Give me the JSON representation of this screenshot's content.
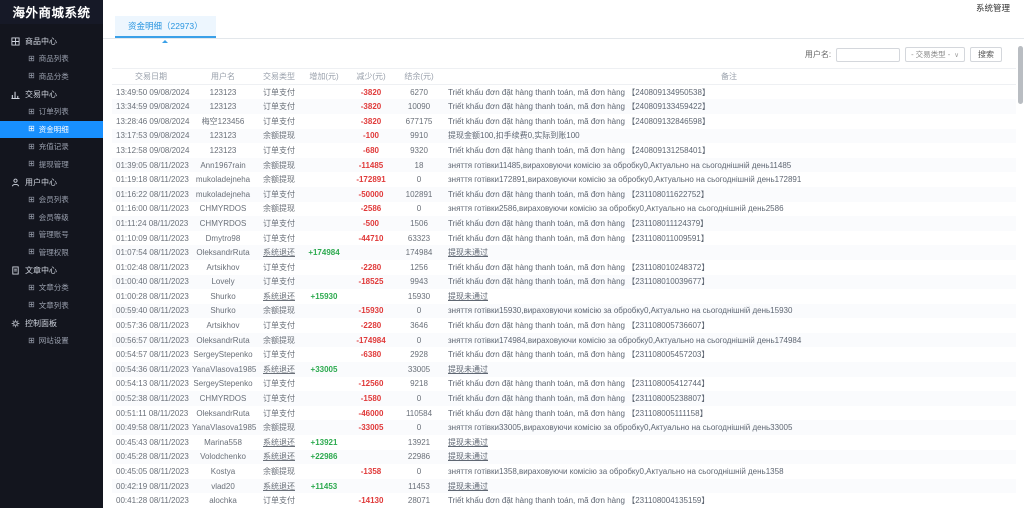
{
  "app": {
    "logo_title": "海外商城系统",
    "topbar_right": "系统管理"
  },
  "sidebar": {
    "sections": [
      {
        "key": "product-center",
        "label": "商品中心",
        "icon": "grid-icon",
        "items": [
          {
            "key": "product-list",
            "label": "商品列表",
            "active": false
          },
          {
            "key": "product-category",
            "label": "商品分类",
            "active": false
          }
        ]
      },
      {
        "key": "trade-center",
        "label": "交易中心",
        "icon": "chart-icon",
        "items": [
          {
            "key": "order-list",
            "label": "订单列表",
            "active": false
          },
          {
            "key": "fund-detail",
            "label": "资金明细",
            "active": true
          },
          {
            "key": "recharge-record",
            "label": "充值记录",
            "active": false
          },
          {
            "key": "withdraw-manage",
            "label": "提现管理",
            "active": false
          }
        ]
      },
      {
        "key": "user-center",
        "label": "用户中心",
        "icon": "user-icon",
        "items": [
          {
            "key": "member-list",
            "label": "会员列表",
            "active": false
          },
          {
            "key": "member-level",
            "label": "会员等级",
            "active": false
          },
          {
            "key": "admin-account",
            "label": "管理账号",
            "active": false
          },
          {
            "key": "admin-permission",
            "label": "管理权限",
            "active": false
          }
        ]
      },
      {
        "key": "article-center",
        "label": "文章中心",
        "icon": "doc-icon",
        "items": [
          {
            "key": "article-category",
            "label": "文章分类",
            "active": false
          },
          {
            "key": "article-list",
            "label": "文章列表",
            "active": false
          }
        ]
      },
      {
        "key": "control-panel",
        "label": "控制面板",
        "icon": "gear-icon",
        "items": [
          {
            "key": "site-setting",
            "label": "网站设置",
            "active": false
          }
        ]
      }
    ]
  },
  "tabs": {
    "active_tab": "资金明细（22973）"
  },
  "filter": {
    "username_label": "用户名:",
    "username_value": "",
    "type_select_label": "- 交易类型 -",
    "search_label": "搜索"
  },
  "table": {
    "headers": [
      "交易日期",
      "用户名",
      "交易类型",
      "增加(元)",
      "减少(元)",
      "结余(元)",
      "备注"
    ],
    "rows": [
      {
        "datetime": "13:49:50 09/08/2024",
        "user": "123123",
        "type": "订单支付",
        "increase": "",
        "decrease": "-3820",
        "balance": "6270",
        "remark": "Triết khấu đơn đặt hàng thanh toán, mã đơn hàng 【240809134950538】",
        "remark_link": false
      },
      {
        "datetime": "13:34:59 09/08/2024",
        "user": "123123",
        "type": "订单支付",
        "increase": "",
        "decrease": "-3820",
        "balance": "10090",
        "remark": "Triết khấu đơn đặt hàng thanh toán, mã đơn hàng 【240809133459422】",
        "remark_link": false
      },
      {
        "datetime": "13:28:46 09/08/2024",
        "user": "梅空123456",
        "type": "订单支付",
        "increase": "",
        "decrease": "-3820",
        "balance": "677175",
        "remark": "Triết khấu đơn đặt hàng thanh toán, mã đơn hàng 【240809132846598】",
        "remark_link": false
      },
      {
        "datetime": "13:17:53 09/08/2024",
        "user": "123123",
        "type": "余额提现",
        "increase": "",
        "decrease": "-100",
        "balance": "9910",
        "remark": "提现金额100,扣手续费0,实际到账100",
        "remark_link": false
      },
      {
        "datetime": "13:12:58 09/08/2024",
        "user": "123123",
        "type": "订单支付",
        "increase": "",
        "decrease": "-680",
        "balance": "9320",
        "remark": "Triết khấu đơn đặt hàng thanh toán, mã đơn hàng 【240809131258401】",
        "remark_link": false
      },
      {
        "datetime": "01:39:05 08/11/2023",
        "user": "Ann1967rain",
        "type": "余额提现",
        "increase": "",
        "decrease": "-11485",
        "balance": "18",
        "remark": "зняття готівки11485,вираховуючи комісію за обробку0,Актуально на сьогоднішній день11485",
        "remark_link": false
      },
      {
        "datetime": "01:19:18 08/11/2023",
        "user": "mukoladejneha",
        "type": "余额提现",
        "increase": "",
        "decrease": "-172891",
        "balance": "0",
        "remark": "зняття готівки172891,вираховуючи комісію за обробку0,Актуально на сьогоднішній день172891",
        "remark_link": false
      },
      {
        "datetime": "01:16:22 08/11/2023",
        "user": "mukoladejneha",
        "type": "订单支付",
        "increase": "",
        "decrease": "-50000",
        "balance": "102891",
        "remark": "Triết khấu đơn đặt hàng thanh toán, mã đơn hàng 【231108011622752】",
        "remark_link": false
      },
      {
        "datetime": "01:16:00 08/11/2023",
        "user": "CHMYRDOS",
        "type": "余额提现",
        "increase": "",
        "decrease": "-2586",
        "balance": "0",
        "remark": "зняття готівки2586,вираховуючи комісію за обробку0,Актуально на сьогоднішній день2586",
        "remark_link": false
      },
      {
        "datetime": "01:11:24 08/11/2023",
        "user": "CHMYRDOS",
        "type": "订单支付",
        "increase": "",
        "decrease": "-500",
        "balance": "1506",
        "remark": "Triết khấu đơn đặt hàng thanh toán, mã đơn hàng 【231108011124379】",
        "remark_link": false
      },
      {
        "datetime": "01:10:09 08/11/2023",
        "user": "Dmytro98",
        "type": "订单支付",
        "increase": "",
        "decrease": "-44710",
        "balance": "63323",
        "remark": "Triết khấu đơn đặt hàng thanh toán, mã đơn hàng 【231108011009591】",
        "remark_link": false
      },
      {
        "datetime": "01:07:54 08/11/2023",
        "user": "OleksandrRuta",
        "type": "系统退还",
        "increase": "+174984",
        "decrease": "",
        "balance": "174984",
        "remark": "提现未通过",
        "remark_link": true
      },
      {
        "datetime": "01:02:48 08/11/2023",
        "user": "Artsikhov",
        "type": "订单支付",
        "increase": "",
        "decrease": "-2280",
        "balance": "1256",
        "remark": "Triết khấu đơn đặt hàng thanh toán, mã đơn hàng 【231108010248372】",
        "remark_link": false
      },
      {
        "datetime": "01:00:40 08/11/2023",
        "user": "Lovely",
        "type": "订单支付",
        "increase": "",
        "decrease": "-18525",
        "balance": "9943",
        "remark": "Triết khấu đơn đặt hàng thanh toán, mã đơn hàng 【231108010039677】",
        "remark_link": false
      },
      {
        "datetime": "01:00:28 08/11/2023",
        "user": "Shurko",
        "type": "系统退还",
        "increase": "+15930",
        "decrease": "",
        "balance": "15930",
        "remark": "提现未通过",
        "remark_link": true
      },
      {
        "datetime": "00:59:40 08/11/2023",
        "user": "Shurko",
        "type": "余额提现",
        "increase": "",
        "decrease": "-15930",
        "balance": "0",
        "remark": "зняття готівки15930,вираховуючи комісію за обробку0,Актуально на сьогоднішній день15930",
        "remark_link": false
      },
      {
        "datetime": "00:57:36 08/11/2023",
        "user": "Artsikhov",
        "type": "订单支付",
        "increase": "",
        "decrease": "-2280",
        "balance": "3646",
        "remark": "Triết khấu đơn đặt hàng thanh toán, mã đơn hàng 【231108005736607】",
        "remark_link": false
      },
      {
        "datetime": "00:56:57 08/11/2023",
        "user": "OleksandrRuta",
        "type": "余额提现",
        "increase": "",
        "decrease": "-174984",
        "balance": "0",
        "remark": "зняття готівки174984,вираховуючи комісію за обробку0,Актуально на сьогоднішній день174984",
        "remark_link": false
      },
      {
        "datetime": "00:54:57 08/11/2023",
        "user": "SergeyStepenko",
        "type": "订单支付",
        "increase": "",
        "decrease": "-6380",
        "balance": "2928",
        "remark": "Triết khấu đơn đặt hàng thanh toán, mã đơn hàng 【231108005457203】",
        "remark_link": false
      },
      {
        "datetime": "00:54:36 08/11/2023",
        "user": "YanaVlasova1985",
        "type": "系统退还",
        "increase": "+33005",
        "decrease": "",
        "balance": "33005",
        "remark": "提现未通过",
        "remark_link": true
      },
      {
        "datetime": "00:54:13 08/11/2023",
        "user": "SergeyStepenko",
        "type": "订单支付",
        "increase": "",
        "decrease": "-12560",
        "balance": "9218",
        "remark": "Triết khấu đơn đặt hàng thanh toán, mã đơn hàng 【231108005412744】",
        "remark_link": false
      },
      {
        "datetime": "00:52:38 08/11/2023",
        "user": "CHMYRDOS",
        "type": "订单支付",
        "increase": "",
        "decrease": "-1580",
        "balance": "0",
        "remark": "Triết khấu đơn đặt hàng thanh toán, mã đơn hàng 【231108005238807】",
        "remark_link": false
      },
      {
        "datetime": "00:51:11 08/11/2023",
        "user": "OleksandrRuta",
        "type": "订单支付",
        "increase": "",
        "decrease": "-46000",
        "balance": "110584",
        "remark": "Triết khấu đơn đặt hàng thanh toán, mã đơn hàng 【231108005111158】",
        "remark_link": false
      },
      {
        "datetime": "00:49:58 08/11/2023",
        "user": "YanaVlasova1985",
        "type": "余额提现",
        "increase": "",
        "decrease": "-33005",
        "balance": "0",
        "remark": "зняття готівки33005,вираховуючи комісію за обробку0,Актуально на сьогоднішній день33005",
        "remark_link": false
      },
      {
        "datetime": "00:45:43 08/11/2023",
        "user": "Marina558",
        "type": "系统退还",
        "increase": "+13921",
        "decrease": "",
        "balance": "13921",
        "remark": "提现未通过",
        "remark_link": true
      },
      {
        "datetime": "00:45:28 08/11/2023",
        "user": "Volodchenko",
        "type": "系统退还",
        "increase": "+22986",
        "decrease": "",
        "balance": "22986",
        "remark": "提现未通过",
        "remark_link": true
      },
      {
        "datetime": "00:45:05 08/11/2023",
        "user": "Kostya",
        "type": "余额提现",
        "increase": "",
        "decrease": "-1358",
        "balance": "0",
        "remark": "зняття готівки1358,вираховуючи комісію за обробку0,Актуально на сьогоднішній день1358",
        "remark_link": false
      },
      {
        "datetime": "00:42:19 08/11/2023",
        "user": "vlad20",
        "type": "系统退还",
        "increase": "+11453",
        "decrease": "",
        "balance": "11453",
        "remark": "提现未通过",
        "remark_link": true
      },
      {
        "datetime": "00:41:28 08/11/2023",
        "user": "alochka",
        "type": "订单支付",
        "increase": "",
        "decrease": "-14130",
        "balance": "28071",
        "remark": "Triết khấu đơn đặt hàng thanh toán, mã đơn hàng 【231108004135159】",
        "remark_link": false
      }
    ]
  },
  "colors": {
    "accent_blue": "#1890ff",
    "negative_red": "#e03a3a",
    "positive_green": "#2daa4f",
    "sidebar_bg": "#13151e"
  }
}
